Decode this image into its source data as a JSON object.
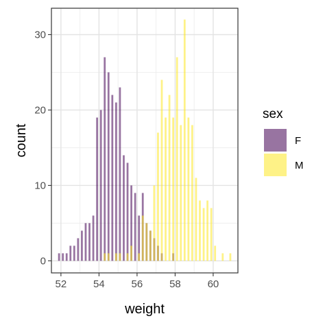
{
  "chart_data": {
    "type": "bar",
    "xlabel": "weight",
    "ylabel": "count",
    "xlim": [
      51.5,
      61.3
    ],
    "ylim": [
      -1.6,
      33.5
    ],
    "x_ticks": [
      52,
      54,
      56,
      58,
      60
    ],
    "y_ticks": [
      0,
      10,
      20,
      30
    ],
    "grid": true,
    "legend": {
      "title": "sex",
      "position": "right"
    },
    "bin_width": 0.2,
    "series": [
      {
        "name": "F",
        "color": "#440154",
        "opacity": 0.55,
        "x": [
          51.9,
          52.1,
          52.3,
          52.5,
          52.7,
          52.9,
          53.1,
          53.3,
          53.5,
          53.7,
          53.9,
          54.1,
          54.3,
          54.5,
          54.7,
          54.9,
          55.1,
          55.3,
          55.5,
          55.7,
          55.9,
          56.1,
          56.3,
          56.5,
          56.7,
          56.9,
          57.1,
          57.3,
          57.9
        ],
        "values": [
          1,
          1,
          1,
          2,
          2,
          3,
          4,
          5,
          5,
          6,
          19,
          20,
          27,
          25,
          22,
          21,
          23,
          14,
          13,
          10,
          9,
          6,
          9,
          5,
          4,
          3,
          2,
          1,
          1
        ]
      },
      {
        "name": "M",
        "color": "#fde725",
        "opacity": 0.55,
        "x": [
          54.3,
          54.5,
          54.9,
          55.1,
          55.5,
          55.7,
          56.1,
          56.3,
          56.5,
          56.7,
          56.9,
          57.1,
          57.3,
          57.5,
          57.7,
          57.9,
          58.1,
          58.3,
          58.5,
          58.7,
          58.9,
          59.1,
          59.3,
          59.5,
          59.7,
          59.9,
          60.1,
          60.5,
          60.9
        ],
        "values": [
          1,
          1,
          1,
          1,
          1,
          2,
          1,
          6,
          5,
          4,
          10,
          17,
          24,
          19,
          22,
          19,
          27,
          18,
          32,
          19,
          18,
          11,
          8,
          7,
          8,
          7,
          2,
          1,
          1
        ]
      }
    ]
  }
}
